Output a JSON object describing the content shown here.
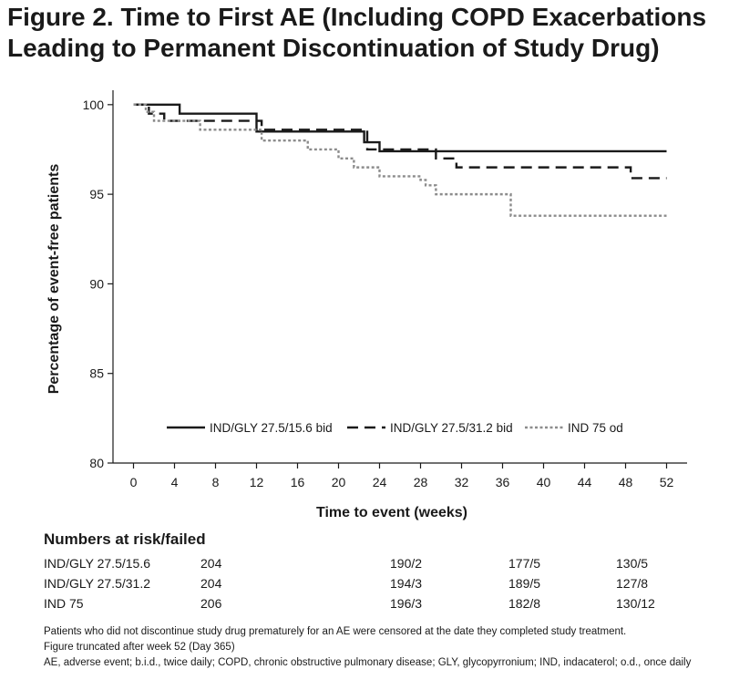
{
  "title": {
    "line1": "Figure 2. Time to First AE (Including COPD Exacerbations",
    "line2": "Leading to Permanent Discontinuation of Study Drug)"
  },
  "chart_data": {
    "type": "line",
    "step": true,
    "xlabel": "Time to event (weeks)",
    "ylabel": "Percentage of event-free patients",
    "xlim": [
      -2,
      54
    ],
    "ylim": [
      80,
      100.5
    ],
    "xticks": [
      0,
      4,
      8,
      12,
      16,
      20,
      24,
      28,
      32,
      36,
      40,
      44,
      48,
      52
    ],
    "yticks": [
      80,
      85,
      90,
      95,
      100
    ],
    "grid": false,
    "legend_position": "bottom-inside",
    "series": [
      {
        "name": "IND/GLY 27.5/15.6 bid",
        "style": "solid",
        "color": "#1a1a1a",
        "x": [
          0,
          4.5,
          12,
          22.5,
          24,
          52
        ],
        "y": [
          100,
          99.5,
          98.5,
          97.9,
          97.4,
          97.4
        ]
      },
      {
        "name": "IND/GLY 27.5/31.2 bid",
        "style": "dashed",
        "color": "#1a1a1a",
        "x": [
          0,
          1.5,
          3,
          12.5,
          22.8,
          29.5,
          31.5,
          48.5,
          52
        ],
        "y": [
          100,
          99.5,
          99.1,
          98.6,
          97.5,
          97.0,
          96.5,
          95.9,
          95.9
        ],
        "end_y": 95.9
      },
      {
        "name": "IND 75 od",
        "style": "dotted",
        "color": "#8c8c8c",
        "x": [
          0,
          1.2,
          2,
          6.5,
          12.5,
          17,
          20,
          21.5,
          24,
          28,
          28.5,
          29.5,
          36.8,
          52
        ],
        "y": [
          100,
          99.6,
          99.1,
          98.6,
          98.0,
          97.5,
          97.0,
          96.5,
          96.0,
          95.8,
          95.5,
          95.0,
          93.8,
          93.8
        ]
      }
    ]
  },
  "risk": {
    "heading": "Numbers at risk/failed",
    "rows": [
      {
        "label": "IND/GLY 27.5/15.6",
        "w0": "204",
        "w24": "190/2",
        "w36": "177/5",
        "w52": "130/5"
      },
      {
        "label": "IND/GLY 27.5/31.2",
        "w0": "204",
        "w24": "194/3",
        "w36": "189/5",
        "w52": "127/8"
      },
      {
        "label": "IND 75",
        "w0": "206",
        "w24": "196/3",
        "w36": "182/8",
        "w52": "130/12"
      }
    ]
  },
  "notes": [
    "Patients who did not discontinue study drug prematurely for an AE were censored at the date they completed study treatment.",
    "Figure truncated after week 52 (Day 365)",
    "AE, adverse event; b.i.d., twice daily; COPD, chronic obstructive pulmonary disease; GLY, glycopyrronium; IND, indacaterol; o.d., once daily"
  ]
}
